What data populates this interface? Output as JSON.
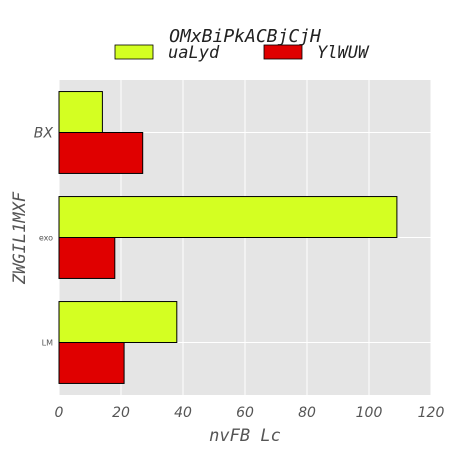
{
  "chart_data": {
    "type": "bar",
    "orientation": "horizontal",
    "title": "OMxBiPkACBjCjH",
    "xlabel": "nvFB Lc",
    "ylabel": "ZWGIL1MXF",
    "categories": [
      "BX",
      "exo",
      "LM"
    ],
    "series": [
      {
        "name": "uaLyd",
        "values": [
          14,
          109,
          38
        ],
        "color": "#d4ff22"
      },
      {
        "name": "YlWUW",
        "values": [
          27,
          18,
          21
        ],
        "color": "#e00000"
      }
    ],
    "xlim": [
      0,
      120
    ],
    "xticks": [
      0,
      20,
      40,
      60,
      80,
      100,
      120
    ],
    "grid": true,
    "legend": "top-center",
    "background": "#e5e5e5"
  }
}
